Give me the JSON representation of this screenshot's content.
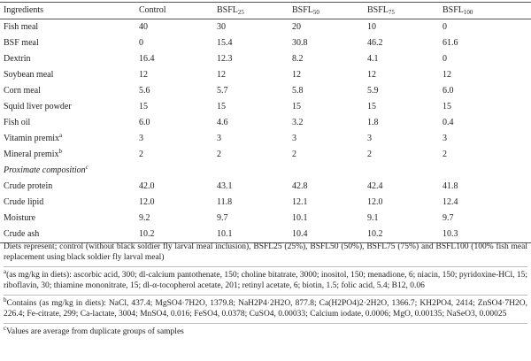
{
  "table": {
    "header": [
      "Ingredients",
      "Control",
      {
        "main": "BSFL",
        "sub": "25"
      },
      {
        "main": "BSFL",
        "sub": "50"
      },
      {
        "main": "BSFL",
        "sub": "75"
      },
      {
        "main": "BSFL",
        "sub": "100"
      }
    ],
    "rows": [
      [
        "Fish meal",
        "40",
        "30",
        "20",
        "10",
        "0"
      ],
      [
        "BSF meal",
        "0",
        "15.4",
        "30.8",
        "46.2",
        "61.6"
      ],
      [
        "Dextrin",
        "16.4",
        "12.3",
        "8.2",
        "4.1",
        "0"
      ],
      [
        "Soybean meal",
        "12",
        "12",
        "12",
        "12",
        "12"
      ],
      [
        "Corn meal",
        "5.6",
        "5.7",
        "5.8",
        "5.9",
        "6.0"
      ],
      [
        "Squid liver powder",
        "15",
        "15",
        "15",
        "15",
        "15"
      ],
      [
        "Fish oil",
        "6.0",
        "4.6",
        "3.2",
        "1.8",
        "0.4"
      ],
      [
        {
          "text": "Vitamin premix",
          "mark": "a"
        },
        "3",
        "3",
        "3",
        "3",
        "3"
      ],
      [
        {
          "text": "Mineral premix",
          "mark": "b"
        },
        "2",
        "2",
        "2",
        "2",
        "2"
      ],
      [
        {
          "text": "Proximate composition",
          "mark": "c",
          "section": true
        }
      ],
      [
        "Crude protein",
        "42.0",
        "43.1",
        "42.8",
        "42.4",
        "41.8"
      ],
      [
        "Crude lipid",
        "12.0",
        "11.8",
        "12.1",
        "12.0",
        "12.4"
      ],
      [
        "Moisture",
        "9.2",
        "9.7",
        "10.1",
        "9.1",
        "9.7"
      ],
      [
        "Crude ash",
        "10.2",
        "10.1",
        "10.4",
        "10.2",
        "10.3"
      ]
    ]
  },
  "notes": [
    {
      "text": "Diets represent; control (without black soldier fly larval meal inclusion), BSFL25 (25%), BSFL50 (50%), BSFL75 (75%) and BSFL100 (100% fish meal replacement using black soldier fly larval meal)"
    },
    {
      "mark": "a",
      "text": "(as mg/kg in diets): ascorbic acid, 300; dl-calcium pantothenate, 150; choline bitatrate, 3000; inositol, 150; menadione, 6; niacin, 150; pyridoxine-HCl, 15; riboflavin, 30; thiamine mononitrate, 15; dl-α-tocopherol acetate, 201; retinyl acetate, 6; biotin, 1.5; folic acid, 5.4; B12, 0.06"
    },
    {
      "mark": "b",
      "text": "Contains (as mg/kg in diets): NaCl, 437.4; MgSO4·7H2O, 1379.8; NaH2P4·2H2O, 877.8; Ca(H2PO4)2·2H2O, 1366.7; KH2PO4, 2414; ZnSO4·7H2O, 226.4; Fe-citrate, 299; Ca-lactate, 3004; MnSO4, 0.016; FeSO4, 0.0378; CuSO4, 0.00033; Calcium iodate, 0.0006; MgO, 0.00135; NaSeO3, 0.00025"
    },
    {
      "mark": "c",
      "text": "Values are average from duplicate groups of samples"
    }
  ]
}
